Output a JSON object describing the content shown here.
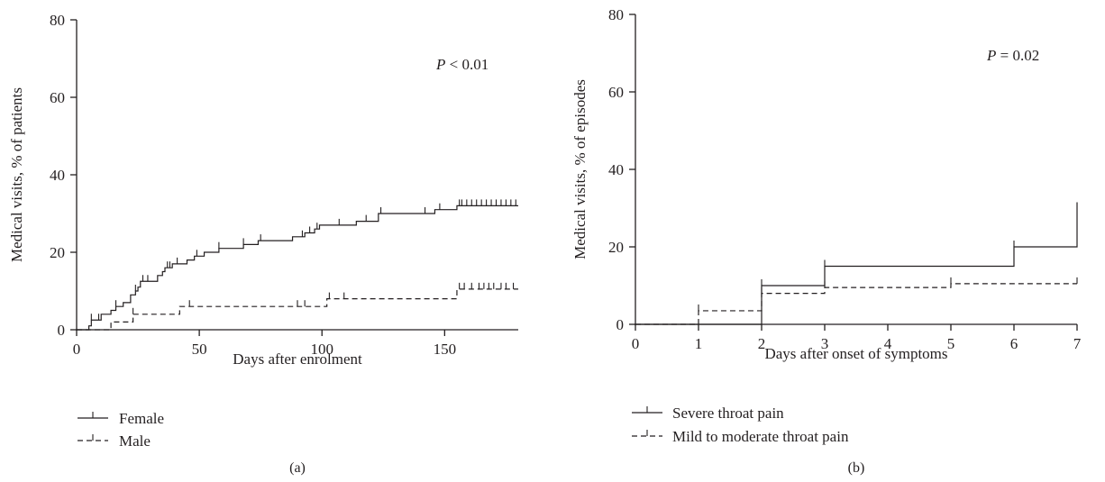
{
  "chart_data": [
    {
      "type": "line",
      "subtype": "step",
      "panel_label": "(a)",
      "xlabel": "Days after enrolment",
      "ylabel": "Medical visits, % of patients",
      "xlim": [
        0,
        180
      ],
      "ylim": [
        0,
        80
      ],
      "xticks": [
        0,
        50,
        100,
        150
      ],
      "yticks": [
        0,
        20,
        40,
        60,
        80
      ],
      "annotation": {
        "p_italic": "P",
        "rest": " < 0.01"
      },
      "legend_position": "bottom-left",
      "series": [
        {
          "name": "Female",
          "style": "solid",
          "steps": [
            [
              0,
              0
            ],
            [
              5,
              1
            ],
            [
              6,
              2.5
            ],
            [
              10,
              4
            ],
            [
              14,
              5
            ],
            [
              16,
              6
            ],
            [
              19,
              7
            ],
            [
              22,
              9
            ],
            [
              24,
              10
            ],
            [
              25,
              11
            ],
            [
              26,
              12.5
            ],
            [
              33,
              14
            ],
            [
              35,
              15
            ],
            [
              36,
              16
            ],
            [
              39,
              17
            ],
            [
              45,
              18
            ],
            [
              48,
              19
            ],
            [
              52,
              20
            ],
            [
              58,
              21
            ],
            [
              68,
              22
            ],
            [
              74,
              23
            ],
            [
              88,
              24
            ],
            [
              93,
              25
            ],
            [
              97,
              26
            ],
            [
              99,
              27
            ],
            [
              114,
              28
            ],
            [
              123,
              30
            ],
            [
              146,
              31
            ],
            [
              155,
              32
            ]
          ],
          "censored": [
            6,
            9,
            16,
            24,
            27,
            29,
            37,
            38,
            41,
            49,
            58,
            68,
            75,
            92,
            95,
            98,
            107,
            118,
            124,
            142,
            148,
            156,
            157,
            159,
            161,
            163,
            165,
            167,
            169,
            171,
            173,
            175,
            177,
            179
          ],
          "end": 180
        },
        {
          "name": "Male",
          "style": "dashed",
          "steps": [
            [
              0,
              0
            ],
            [
              14,
              2
            ],
            [
              23,
              4
            ],
            [
              42,
              6
            ],
            [
              102,
              8
            ],
            [
              155,
              10.5
            ]
          ],
          "censored": [
            23,
            46,
            90,
            93,
            103,
            109,
            156,
            158,
            161,
            164,
            166,
            168,
            170,
            173,
            175,
            178
          ],
          "end": 180
        }
      ]
    },
    {
      "type": "line",
      "subtype": "step",
      "panel_label": "(b)",
      "xlabel": "Days after onset of symptoms",
      "ylabel": "Medical visits, % of episodes",
      "xlim": [
        0,
        7
      ],
      "ylim": [
        0,
        80
      ],
      "xticks": [
        0,
        1,
        2,
        3,
        4,
        5,
        6,
        7
      ],
      "yticks": [
        0,
        20,
        40,
        60,
        80
      ],
      "annotation": {
        "p_italic": "P",
        "rest": " = 0.02"
      },
      "legend_position": "bottom-left",
      "series": [
        {
          "name": "Severe throat pain",
          "style": "solid",
          "steps": [
            [
              0,
              0
            ],
            [
              2,
              10
            ],
            [
              3,
              15
            ],
            [
              6,
              20
            ],
            [
              7,
              31.5
            ]
          ],
          "censored": [
            2,
            3,
            6
          ],
          "end": 7
        },
        {
          "name": "Mild to moderate throat pain",
          "style": "dashed",
          "steps": [
            [
              0,
              0
            ],
            [
              1,
              3.5
            ],
            [
              2,
              8
            ],
            [
              3,
              9.5
            ],
            [
              5,
              10.5
            ]
          ],
          "censored": [
            1,
            2,
            3,
            5,
            7
          ],
          "end": 7
        }
      ]
    }
  ]
}
